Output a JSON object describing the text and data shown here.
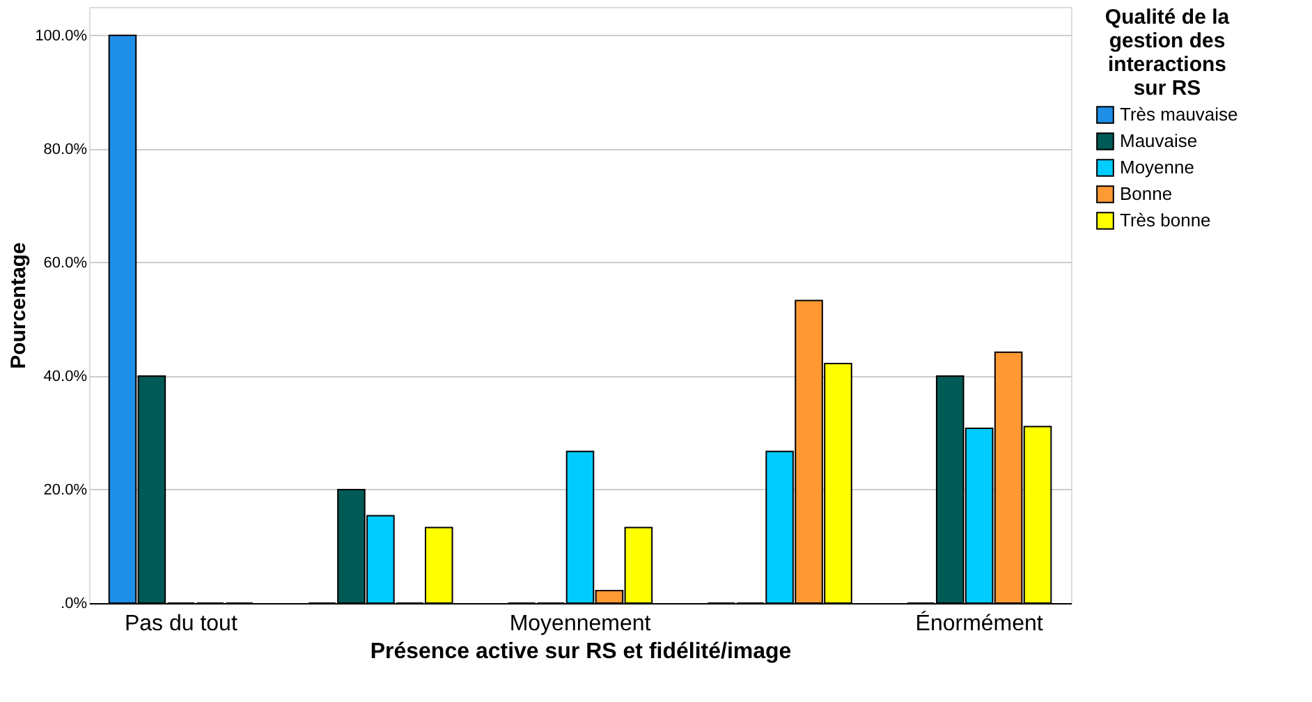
{
  "chart_data": {
    "type": "bar",
    "xlabel": "Présence active sur RS et fidélité/image",
    "ylabel": "Pourcentage",
    "legend_title": "Qualité de la gestion des interactions sur RS",
    "categories": [
      "Pas du tout",
      null,
      "Moyennement",
      null,
      "Énormément"
    ],
    "series": [
      {
        "name": "Très mauvaise",
        "color": "#1f8ee6",
        "values": [
          100,
          0,
          0,
          0,
          0
        ]
      },
      {
        "name": "Mauvaise",
        "color": "#005a56",
        "values": [
          40,
          20,
          0,
          0,
          40
        ]
      },
      {
        "name": "Moyenne",
        "color": "#00ccff",
        "values": [
          0,
          15.4,
          26.7,
          26.7,
          30.8
        ]
      },
      {
        "name": "Bonne",
        "color": "#ff9933",
        "values": [
          0,
          0,
          2.2,
          53.3,
          44.2
        ]
      },
      {
        "name": "Très bonne",
        "color": "#ffff00",
        "values": [
          0,
          13.3,
          13.3,
          42.2,
          31.1
        ]
      }
    ],
    "ylim": [
      0,
      105
    ],
    "yticks": [
      {
        "value": 0,
        "label": ".0%"
      },
      {
        "value": 20,
        "label": "20.0%"
      },
      {
        "value": 40,
        "label": "40.0%"
      },
      {
        "value": 60,
        "label": "60.0%"
      },
      {
        "value": 80,
        "label": "80.0%"
      },
      {
        "value": 100,
        "label": "100.0%"
      }
    ],
    "grid": "y",
    "legend": "top right"
  }
}
